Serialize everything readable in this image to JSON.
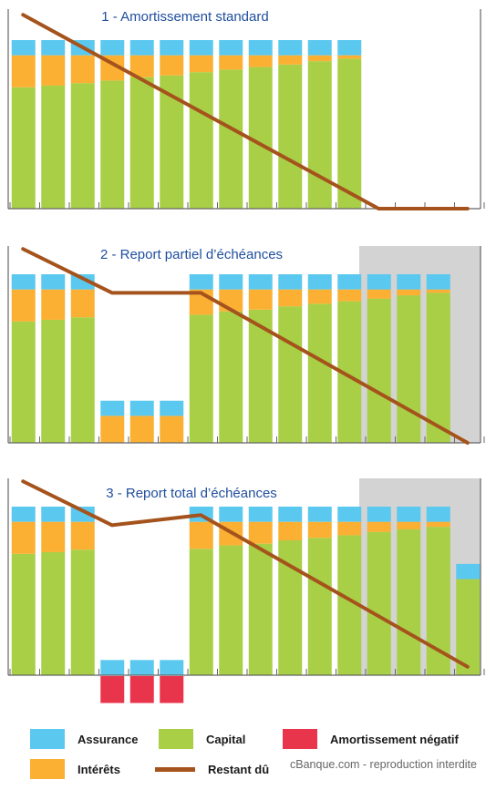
{
  "colors": {
    "assurance": "#5bc8ef",
    "interets": "#fbb034",
    "capital": "#a9cf46",
    "negatif": "#e8354b",
    "restant": "#a5531c",
    "title": "#1f4e9e",
    "shade": "#d3d3d3",
    "axis": "#666666"
  },
  "chart_data": [
    {
      "type": "bar",
      "title": "1 - Amortissement standard",
      "stacks": [
        "capital",
        "interets",
        "assurance"
      ],
      "periods": 16,
      "bars": [
        {
          "capital": 72,
          "interets": 19,
          "assurance": 9
        },
        {
          "capital": 73,
          "interets": 18,
          "assurance": 9
        },
        {
          "capital": 74.5,
          "interets": 16.5,
          "assurance": 9
        },
        {
          "capital": 76,
          "interets": 15,
          "assurance": 9
        },
        {
          "capital": 78,
          "interets": 13,
          "assurance": 9
        },
        {
          "capital": 79,
          "interets": 12,
          "assurance": 9
        },
        {
          "capital": 81,
          "interets": 10,
          "assurance": 9
        },
        {
          "capital": 82.5,
          "interets": 8.5,
          "assurance": 9
        },
        {
          "capital": 84,
          "interets": 7,
          "assurance": 9
        },
        {
          "capital": 85.5,
          "interets": 5.5,
          "assurance": 9
        },
        {
          "capital": 87.5,
          "interets": 3.5,
          "assurance": 9
        },
        {
          "capital": 89,
          "interets": 2,
          "assurance": 9
        }
      ],
      "restant_du": [
        [
          0,
          115
        ],
        [
          12,
          0
        ],
        [
          15,
          0
        ]
      ],
      "shaded_from": null,
      "ylim": [
        -25,
        118
      ]
    },
    {
      "type": "bar",
      "title": "2 - Report partiel d’échéances",
      "stacks": [
        "capital",
        "interets",
        "assurance"
      ],
      "periods": 16,
      "bars": [
        {
          "capital": 72,
          "interets": 19,
          "assurance": 9
        },
        {
          "capital": 73,
          "interets": 18,
          "assurance": 9
        },
        {
          "capital": 74.5,
          "interets": 16.5,
          "assurance": 9
        },
        {
          "capital": 0,
          "interets": 16,
          "assurance": 9
        },
        {
          "capital": 0,
          "interets": 16,
          "assurance": 9
        },
        {
          "capital": 0,
          "interets": 16,
          "assurance": 9
        },
        {
          "capital": 76,
          "interets": 15,
          "assurance": 9
        },
        {
          "capital": 78,
          "interets": 13,
          "assurance": 9
        },
        {
          "capital": 79,
          "interets": 12,
          "assurance": 9
        },
        {
          "capital": 81,
          "interets": 10,
          "assurance": 9
        },
        {
          "capital": 82.5,
          "interets": 8.5,
          "assurance": 9
        },
        {
          "capital": 84,
          "interets": 7,
          "assurance": 9
        },
        {
          "capital": 85.5,
          "interets": 5.5,
          "assurance": 9
        },
        {
          "capital": 87.5,
          "interets": 3.5,
          "assurance": 9
        },
        {
          "capital": 89,
          "interets": 2,
          "assurance": 9
        }
      ],
      "restant_du": [
        [
          0,
          115
        ],
        [
          3,
          89
        ],
        [
          6,
          89
        ],
        [
          15,
          0
        ]
      ],
      "shaded_from": 12,
      "ylim": [
        -25,
        118
      ]
    },
    {
      "type": "bar",
      "title": "3 - Report total d’échéances",
      "stacks": [
        "capital",
        "interets",
        "assurance"
      ],
      "periods": 16,
      "bars": [
        {
          "capital": 72,
          "interets": 19,
          "assurance": 9
        },
        {
          "capital": 73,
          "interets": 18,
          "assurance": 9
        },
        {
          "capital": 74.5,
          "interets": 16.5,
          "assurance": 9
        },
        {
          "capital": 0,
          "interets": 0,
          "assurance": 9,
          "negatif": 16
        },
        {
          "capital": 0,
          "interets": 0,
          "assurance": 9,
          "negatif": 16
        },
        {
          "capital": 0,
          "interets": 0,
          "assurance": 9,
          "negatif": 16
        },
        {
          "capital": 75,
          "interets": 16,
          "assurance": 9
        },
        {
          "capital": 77,
          "interets": 14,
          "assurance": 9
        },
        {
          "capital": 78,
          "interets": 13,
          "assurance": 9
        },
        {
          "capital": 80,
          "interets": 11,
          "assurance": 9
        },
        {
          "capital": 81.5,
          "interets": 9.5,
          "assurance": 9
        },
        {
          "capital": 83,
          "interets": 8,
          "assurance": 9
        },
        {
          "capital": 85,
          "interets": 6,
          "assurance": 9
        },
        {
          "capital": 86.5,
          "interets": 4.5,
          "assurance": 9
        },
        {
          "capital": 88,
          "interets": 3,
          "assurance": 9
        },
        {
          "capital": 57,
          "interets": 0,
          "assurance": 9
        }
      ],
      "restant_du": [
        [
          0,
          115
        ],
        [
          3,
          89
        ],
        [
          6,
          95
        ],
        [
          15,
          5
        ]
      ],
      "shaded_from": 12,
      "ylim": [
        -25,
        118
      ]
    }
  ],
  "legend": {
    "assurance": "Assurance",
    "capital": "Capital",
    "negatif": "Amortissement négatif",
    "interets": "Intérêts",
    "restant": "Restant dû"
  },
  "credit": "cBanque.com - reproduction interdite"
}
